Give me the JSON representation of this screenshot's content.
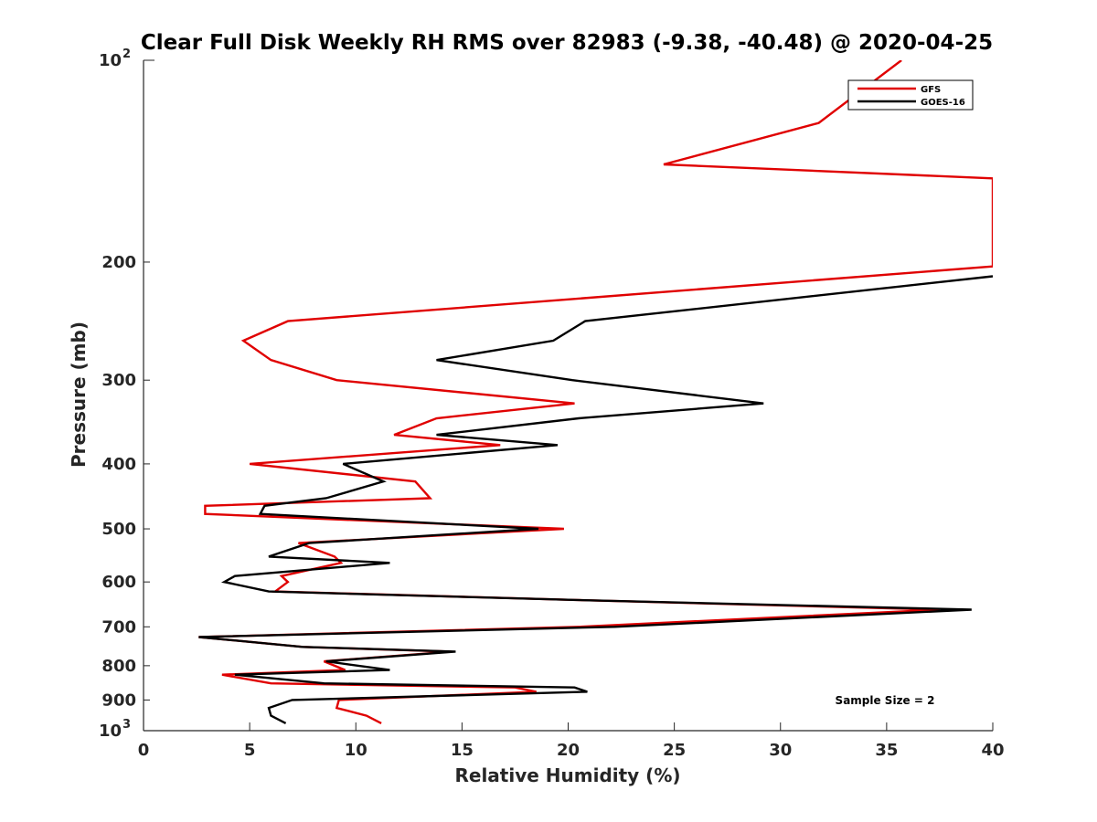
{
  "chart_data": {
    "type": "line",
    "title": "Clear Full Disk Weekly RH RMS over 82983 (-9.38, -40.48) @ 2020-04-25",
    "xlabel": "Relative Humidity (%)",
    "ylabel": "Pressure (mb)",
    "xlim": [
      0,
      40
    ],
    "ylim": [
      100,
      1000
    ],
    "yscale": "log",
    "y_reversed": true,
    "xticks": [
      0,
      5,
      10,
      15,
      20,
      25,
      30,
      35,
      40
    ],
    "xtick_labels": [
      "0",
      "5",
      "10",
      "15",
      "20",
      "25",
      "30",
      "35",
      "40"
    ],
    "yticks_minor": [
      200,
      300,
      400,
      500,
      600,
      700,
      800,
      900
    ],
    "ytick_minor_labels": [
      "200",
      "300",
      "400",
      "500",
      "600",
      "700",
      "800",
      "900"
    ],
    "ytick_major": [
      {
        "value": 100,
        "base": "10",
        "exp": "2"
      },
      {
        "value": 1000,
        "base": "10",
        "exp": "3"
      }
    ],
    "legend_position": "top-right",
    "annotation": "Sample Size = 2",
    "series": [
      {
        "name": "GFS",
        "color": "#e00000",
        "points": [
          [
            11.2,
            975
          ],
          [
            10.5,
            950
          ],
          [
            9.1,
            925
          ],
          [
            9.2,
            900
          ],
          [
            18.5,
            875
          ],
          [
            17.5,
            862
          ],
          [
            6.0,
            850
          ],
          [
            3.7,
            825
          ],
          [
            9.5,
            812
          ],
          [
            8.5,
            788
          ],
          [
            14.5,
            762
          ],
          [
            7.5,
            750
          ],
          [
            2.6,
            725
          ],
          [
            20.5,
            700
          ],
          [
            37.5,
            660
          ],
          [
            20.0,
            638
          ],
          [
            6.2,
            620
          ],
          [
            6.8,
            600
          ],
          [
            6.5,
            588
          ],
          [
            9.3,
            562
          ],
          [
            9.0,
            550
          ],
          [
            7.3,
            525
          ],
          [
            19.8,
            500
          ],
          [
            2.9,
            475
          ],
          [
            2.9,
            462
          ],
          [
            13.5,
            450
          ],
          [
            12.8,
            425
          ],
          [
            5.0,
            400
          ],
          [
            16.8,
            375
          ],
          [
            11.8,
            362
          ],
          [
            13.8,
            342
          ],
          [
            20.3,
            325
          ],
          [
            9.1,
            300
          ],
          [
            6.0,
            280
          ],
          [
            4.7,
            262
          ],
          [
            6.8,
            245
          ],
          [
            40.0,
            203
          ],
          [
            40.0,
            150
          ],
          [
            24.5,
            143
          ],
          [
            31.8,
            124
          ],
          [
            35.7,
            100
          ]
        ]
      },
      {
        "name": "GOES-16",
        "color": "#000000",
        "points": [
          [
            6.7,
            975
          ],
          [
            6.0,
            950
          ],
          [
            5.9,
            925
          ],
          [
            7.0,
            900
          ],
          [
            20.9,
            875
          ],
          [
            20.3,
            862
          ],
          [
            8.5,
            850
          ],
          [
            4.3,
            825
          ],
          [
            11.6,
            812
          ],
          [
            8.6,
            788
          ],
          [
            14.7,
            762
          ],
          [
            7.5,
            750
          ],
          [
            2.6,
            725
          ],
          [
            22.2,
            700
          ],
          [
            39.0,
            660
          ],
          [
            20.0,
            638
          ],
          [
            5.9,
            620
          ],
          [
            3.8,
            600
          ],
          [
            4.3,
            588
          ],
          [
            11.6,
            562
          ],
          [
            5.9,
            550
          ],
          [
            7.8,
            525
          ],
          [
            18.6,
            500
          ],
          [
            5.5,
            475
          ],
          [
            5.7,
            462
          ],
          [
            8.6,
            450
          ],
          [
            11.3,
            425
          ],
          [
            9.4,
            400
          ],
          [
            19.5,
            375
          ],
          [
            13.8,
            362
          ],
          [
            20.5,
            342
          ],
          [
            29.2,
            325
          ],
          [
            20.2,
            300
          ],
          [
            13.8,
            280
          ],
          [
            19.3,
            262
          ],
          [
            20.8,
            245
          ],
          [
            40.0,
            210
          ]
        ]
      }
    ]
  }
}
